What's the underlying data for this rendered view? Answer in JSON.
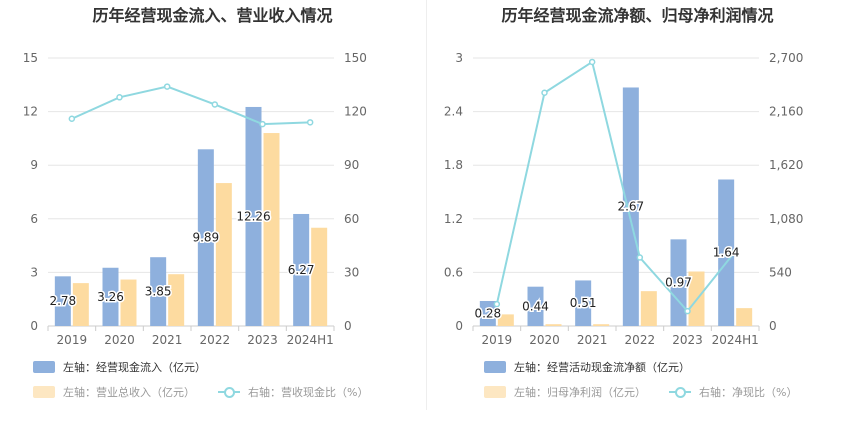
{
  "chart_data": [
    {
      "type": "bar",
      "title": "历年经营现金流入、营业收入情况",
      "categories": [
        "2019",
        "2020",
        "2021",
        "2022",
        "2023",
        "2024H1"
      ],
      "left_axis": {
        "ticks": [
          "0",
          "3",
          "6",
          "9",
          "12",
          "15"
        ],
        "min": 0,
        "max": 15
      },
      "right_axis": {
        "ticks": [
          "0",
          "30",
          "60",
          "90",
          "120",
          "150"
        ],
        "min": 0,
        "max": 150
      },
      "series": [
        {
          "name": "左轴：经营现金流入（亿元）",
          "type": "bar",
          "axis": "left",
          "color": "#8eb0dd",
          "values": [
            2.78,
            3.26,
            3.85,
            9.89,
            12.26,
            6.27
          ],
          "labels": [
            "2.78",
            "3.26",
            "3.85",
            "9.89",
            "12.26",
            "6.27"
          ]
        },
        {
          "name": "左轴：营业总收入（亿元）",
          "type": "bar",
          "axis": "left",
          "color": "#fddba0",
          "values": [
            2.4,
            2.6,
            2.9,
            8.0,
            10.8,
            5.5
          ]
        },
        {
          "name": "右轴：营收现金比（%）",
          "type": "line",
          "axis": "right",
          "color": "#8fd8e0",
          "values": [
            116,
            128,
            134,
            124,
            113,
            114
          ]
        }
      ],
      "grid": true,
      "legend_position": "bottom-left"
    },
    {
      "type": "bar",
      "title": "历年经营现金流净额、归母净利润情况",
      "categories": [
        "2019",
        "2020",
        "2021",
        "2022",
        "2023",
        "2024H1"
      ],
      "left_axis": {
        "ticks": [
          "0",
          "0.6",
          "1.2",
          "1.8",
          "2.4",
          "3"
        ],
        "min": 0,
        "max": 3
      },
      "right_axis": {
        "ticks": [
          "0",
          "540",
          "1,080",
          "1,620",
          "2,160",
          "2,700"
        ],
        "min": 0,
        "max": 2700
      },
      "series": [
        {
          "name": "左轴：经营活动现金流净额（亿元）",
          "type": "bar",
          "axis": "left",
          "color": "#8eb0dd",
          "values": [
            0.28,
            0.44,
            0.51,
            2.67,
            0.97,
            1.64
          ],
          "labels": [
            "0.28",
            "0.44",
            "0.51",
            "2.67",
            "0.97",
            "1.64"
          ]
        },
        {
          "name": "左轴：归母净利润（亿元）",
          "type": "bar",
          "axis": "left",
          "color": "#fddba0",
          "values": [
            0.13,
            0.02,
            0.02,
            0.39,
            0.61,
            0.2
          ]
        },
        {
          "name": "右轴：净现比（%）",
          "type": "line",
          "axis": "right",
          "color": "#8fd8e0",
          "values": [
            220,
            2350,
            2660,
            690,
            150,
            750
          ]
        }
      ],
      "grid": true,
      "legend_position": "bottom-left"
    }
  ]
}
